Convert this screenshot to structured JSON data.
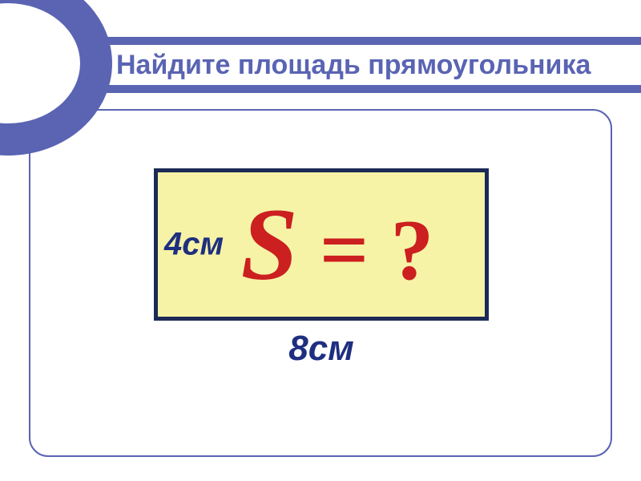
{
  "colors": {
    "banner": "#5a64b3",
    "title": "#5a64b3",
    "panel_border": "#5a64b3",
    "rect_border": "#1b2a57",
    "rect_fill": "#f6f3a7",
    "side_label": "#1e2f80",
    "formula": "#cc1f1f",
    "bottom_label": "#1e2f80"
  },
  "title": {
    "text": "Найдите площадь прямоугольника",
    "fontsize": 34
  },
  "diagram": {
    "side_left": "4см",
    "side_left_fontsize": 40,
    "bottom": "8см",
    "bottom_fontsize": 44,
    "formula_s": "S",
    "formula_rest": " = ?",
    "formula_fontsize": 108,
    "s_fontsize": 128
  }
}
